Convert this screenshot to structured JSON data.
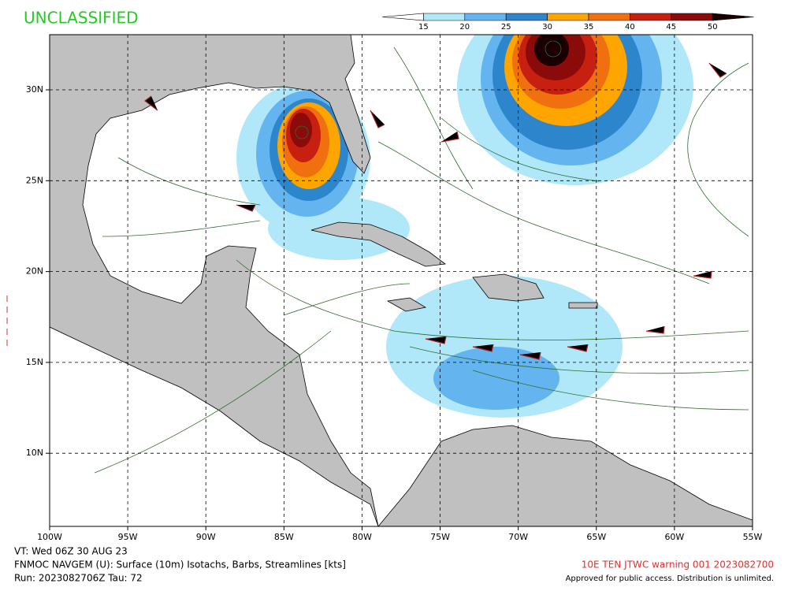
{
  "header": {
    "classification": "UNCLASSIFIED"
  },
  "colorbar": {
    "labels": [
      15,
      20,
      25,
      30,
      35,
      40,
      45,
      50
    ],
    "colors": [
      "#ffffff",
      "#b0e8fa",
      "#64b4f0",
      "#2d86cc",
      "#ffa500",
      "#f07010",
      "#c82010",
      "#8b0a0a",
      "#1a0000"
    ]
  },
  "map": {
    "lat_labels": [
      "30N",
      "25N",
      "20N",
      "15N",
      "10N"
    ],
    "lon_labels": [
      "100W",
      "95W",
      "90W",
      "85W",
      "80W",
      "75W",
      "70W",
      "65W",
      "60W",
      "55W"
    ]
  },
  "footer": {
    "valid_time": "VT: Wed 06Z 30 AUG 23",
    "product": "FNMOC NAVGEM (U): Surface (10m) Isotachs, Barbs, Streamlines [kts]",
    "run": "Run: 2023082706Z Tau: 72",
    "warning": "10E TEN JTWC warning 001 2023082700",
    "release": "Approved for public access. Distribution is unlimited."
  }
}
